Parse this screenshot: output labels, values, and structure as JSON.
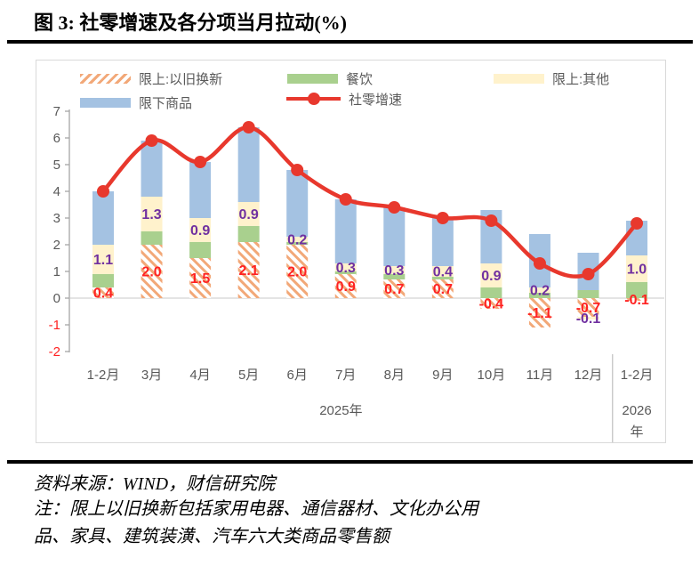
{
  "title": "图 3:  社零增速及各分项当月拉动(%)",
  "colors": {
    "bar_blue": "#A4C2E2",
    "bar_green": "#A9D08E",
    "bar_yellow": "#FFF2CC",
    "hatch_orange": "#F2A878",
    "line_red": "#E8382D",
    "data_label_red": "#FF2222",
    "data_label_purple": "#7030A0",
    "axis_text_gray": "#595959",
    "axis_line_gray": "#A6A6A6",
    "zero_grid": "#DCDCDC",
    "frame_border": "#D9D9D9",
    "group_divider": "#BFBFBF"
  },
  "legend": [
    {
      "label": "限上:以旧换新",
      "swatch": "hatch"
    },
    {
      "label": "餐饮",
      "swatch": "green"
    },
    {
      "label": "限上:其他",
      "swatch": "yellow"
    },
    {
      "label": "限下商品",
      "swatch": "blue"
    },
    {
      "label": "社零增速",
      "swatch": "line"
    }
  ],
  "chart_data": {
    "type": "bar",
    "subtype": "stacked-bars-with-line",
    "categories": [
      "1-2月",
      "3月",
      "4月",
      "5月",
      "6月",
      "7月",
      "8月",
      "9月",
      "10月",
      "11月",
      "12月",
      "1-2月"
    ],
    "group_labels": [
      {
        "label": "2025年",
        "from": 0,
        "to": 10
      },
      {
        "label_line1": "2026",
        "label_line2": "年",
        "from": 11,
        "to": 11
      }
    ],
    "series": [
      {
        "name": "限上:以旧换新",
        "style": "hatch",
        "values": [
          0.4,
          2.0,
          1.5,
          2.1,
          2.0,
          0.9,
          0.7,
          0.7,
          -0.4,
          -1.1,
          -0.7,
          -0.1
        ],
        "labels": [
          "0.4",
          "2.0",
          "1.5",
          "2.1",
          "2.0",
          "0.9",
          "0.7",
          "0.7",
          "-0.4",
          "-1.1",
          "-0.7",
          "-0.1"
        ],
        "label_color": "red"
      },
      {
        "name": "餐饮",
        "style": "green",
        "values": [
          0.5,
          0.5,
          0.6,
          0.6,
          0.1,
          0.1,
          0.2,
          0.1,
          0.4,
          0.2,
          0.3,
          0.6
        ]
      },
      {
        "name": "限上:其他",
        "style": "yellow",
        "values": [
          1.1,
          1.3,
          0.9,
          0.9,
          0.2,
          0.3,
          0.3,
          0.4,
          0.9,
          0.2,
          -0.1,
          1.0
        ],
        "labels": [
          "1.1",
          "1.3",
          "0.9",
          "0.9",
          "0.2",
          "0.3",
          "0.3",
          "0.4",
          "0.9",
          "0.2",
          "-0.1",
          "1.0"
        ],
        "label_color": "purple"
      },
      {
        "name": "限下商品",
        "style": "blue",
        "values": [
          2.0,
          2.1,
          2.1,
          2.8,
          2.5,
          2.4,
          2.2,
          1.8,
          2.0,
          2.0,
          1.4,
          1.3
        ]
      }
    ],
    "line_series": {
      "name": "社零增速",
      "values": [
        4.0,
        5.9,
        5.1,
        6.4,
        4.8,
        3.7,
        3.4,
        3.0,
        2.9,
        1.3,
        0.9,
        2.8
      ]
    },
    "ylim": [
      -2,
      7
    ],
    "yticks": [
      7,
      6,
      5,
      4,
      3,
      2,
      1,
      0,
      -1,
      -2
    ],
    "grid": "zero-line-only",
    "legend_position": "top"
  },
  "footer": {
    "source": "资料来源：WIND，财信研究院",
    "note_line1": "注：限上以旧换新包括家用电器、通信器材、文化办公用",
    "note_line2": "品、家具、建筑装潢、汽车六大类商品零售额"
  }
}
